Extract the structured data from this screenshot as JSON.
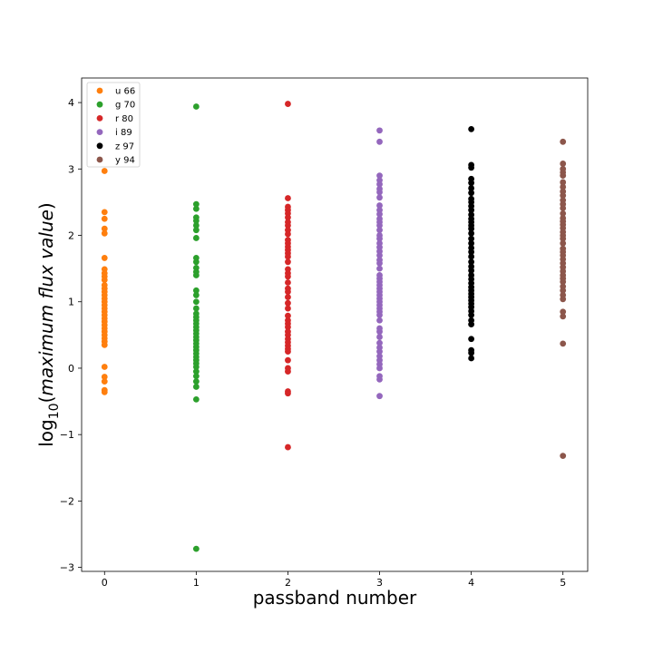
{
  "chart_data": {
    "type": "scatter",
    "xlabel": "passband number",
    "ylabel_prefix": "log",
    "ylabel_sub": "10",
    "ylabel_open": "(",
    "ylabel_italic": "maximum flux value",
    "ylabel_close": ")",
    "xlim": [
      -0.25,
      5.27
    ],
    "ylim": [
      -3.06,
      4.37
    ],
    "x_ticks": [
      0,
      1,
      2,
      3,
      4,
      5
    ],
    "x_tick_labels": [
      "0",
      "1",
      "2",
      "3",
      "4",
      "5"
    ],
    "y_ticks": [
      -3,
      -2,
      -1,
      0,
      1,
      2,
      3,
      4
    ],
    "y_tick_labels": [
      "−3",
      "−2",
      "−1",
      "0",
      "1",
      "2",
      "3",
      "4"
    ],
    "grid": false,
    "legend_position": "top-left",
    "series": [
      {
        "name": "u 66",
        "color": "#ff7f0e",
        "x": 0,
        "values": [
          2.97,
          2.35,
          2.25,
          2.1,
          2.03,
          1.66,
          1.49,
          1.43,
          1.38,
          1.33,
          1.25,
          1.2,
          1.15,
          1.1,
          1.05,
          1.0,
          0.95,
          0.9,
          0.85,
          0.8,
          0.75,
          0.7,
          0.65,
          0.6,
          0.55,
          0.5,
          0.45,
          0.4,
          0.35,
          0.02,
          -0.13,
          -0.2,
          -0.33,
          -0.36
        ]
      },
      {
        "name": "g 70",
        "color": "#2ca02c",
        "x": 1,
        "values": [
          3.94,
          2.47,
          2.4,
          2.27,
          2.22,
          2.15,
          2.08,
          1.96,
          1.66,
          1.6,
          1.51,
          1.45,
          1.4,
          1.17,
          1.1,
          1.0,
          0.9,
          0.82,
          0.77,
          0.72,
          0.67,
          0.62,
          0.57,
          0.52,
          0.47,
          0.42,
          0.37,
          0.32,
          0.27,
          0.22,
          0.17,
          0.12,
          0.07,
          0.02,
          -0.05,
          -0.12,
          -0.2,
          -0.28,
          -0.47,
          -2.72
        ]
      },
      {
        "name": "r 80",
        "color": "#d62728",
        "x": 2,
        "values": [
          3.98,
          2.56,
          2.43,
          2.38,
          2.33,
          2.27,
          2.2,
          2.15,
          2.08,
          2.02,
          1.93,
          1.88,
          1.83,
          1.78,
          1.73,
          1.68,
          1.6,
          1.49,
          1.43,
          1.38,
          1.29,
          1.2,
          1.15,
          1.07,
          0.98,
          0.9,
          0.79,
          0.72,
          0.67,
          0.62,
          0.55,
          0.5,
          0.44,
          0.39,
          0.34,
          0.29,
          0.25,
          0.12,
          0.0,
          -0.05,
          -0.35,
          -0.38,
          -1.19
        ]
      },
      {
        "name": "i 89",
        "color": "#9467bd",
        "x": 3,
        "values": [
          3.58,
          3.41,
          2.9,
          2.83,
          2.77,
          2.7,
          2.65,
          2.57,
          2.45,
          2.38,
          2.32,
          2.25,
          2.2,
          2.15,
          2.08,
          2.0,
          1.95,
          1.88,
          1.82,
          1.76,
          1.7,
          1.63,
          1.58,
          1.5,
          1.4,
          1.35,
          1.3,
          1.25,
          1.2,
          1.15,
          1.1,
          1.05,
          1.0,
          0.95,
          0.9,
          0.85,
          0.8,
          0.72,
          0.6,
          0.55,
          0.47,
          0.38,
          0.31,
          0.25,
          0.18,
          0.12,
          0.06,
          0.0,
          -0.12,
          -0.17,
          -0.42
        ]
      },
      {
        "name": "z 97",
        "color": "#000000",
        "x": 4,
        "values": [
          3.6,
          3.06,
          3.02,
          2.85,
          2.79,
          2.71,
          2.64,
          2.55,
          2.5,
          2.44,
          2.38,
          2.31,
          2.25,
          2.2,
          2.15,
          2.1,
          2.03,
          1.95,
          1.88,
          1.81,
          1.75,
          1.68,
          1.6,
          1.53,
          1.47,
          1.4,
          1.34,
          1.28,
          1.22,
          1.17,
          1.12,
          1.07,
          1.02,
          0.97,
          0.92,
          0.86,
          0.8,
          0.72,
          0.66,
          0.44,
          0.27,
          0.23,
          0.15
        ]
      },
      {
        "name": "y 94",
        "color": "#8c564b",
        "x": 5,
        "values": [
          3.41,
          3.08,
          3.0,
          2.95,
          2.9,
          2.8,
          2.73,
          2.66,
          2.6,
          2.53,
          2.47,
          2.41,
          2.33,
          2.26,
          2.21,
          2.16,
          2.11,
          2.05,
          2.0,
          1.95,
          1.88,
          1.8,
          1.75,
          1.7,
          1.64,
          1.58,
          1.52,
          1.46,
          1.4,
          1.35,
          1.3,
          1.23,
          1.17,
          1.1,
          1.04,
          0.85,
          0.78,
          0.37,
          -1.32
        ]
      }
    ]
  }
}
